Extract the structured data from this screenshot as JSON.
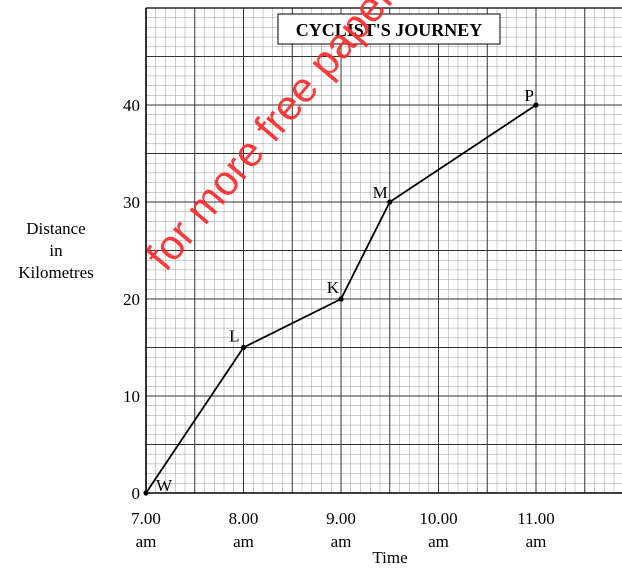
{
  "watermark_text": "for more free papers visit: www.f",
  "chart_data": {
    "type": "line",
    "title": "CYCLIST'S JOURNEY",
    "xlabel": "Time",
    "ylabel_lines": [
      "Distance",
      "in",
      "Kilometres"
    ],
    "x_ticks": [
      {
        "value": 7,
        "top": "7.00",
        "bottom": "am"
      },
      {
        "value": 8,
        "top": "8.00",
        "bottom": "am"
      },
      {
        "value": 9,
        "top": "9.00",
        "bottom": "am"
      },
      {
        "value": 10,
        "top": "10.00",
        "bottom": "am"
      },
      {
        "value": 11,
        "top": "11.00",
        "bottom": "am"
      }
    ],
    "y_ticks": [
      0,
      10,
      20,
      30,
      40
    ],
    "xlim": [
      7,
      11.9
    ],
    "ylim": [
      0,
      50
    ],
    "grid": true,
    "series": [
      {
        "points": [
          {
            "x": 7.0,
            "y": 0,
            "label": "W"
          },
          {
            "x": 8.0,
            "y": 15,
            "label": "L"
          },
          {
            "x": 9.0,
            "y": 20,
            "label": "K"
          },
          {
            "x": 9.5,
            "y": 30,
            "label": "M"
          },
          {
            "x": 11.0,
            "y": 40,
            "label": "P"
          }
        ]
      }
    ]
  }
}
